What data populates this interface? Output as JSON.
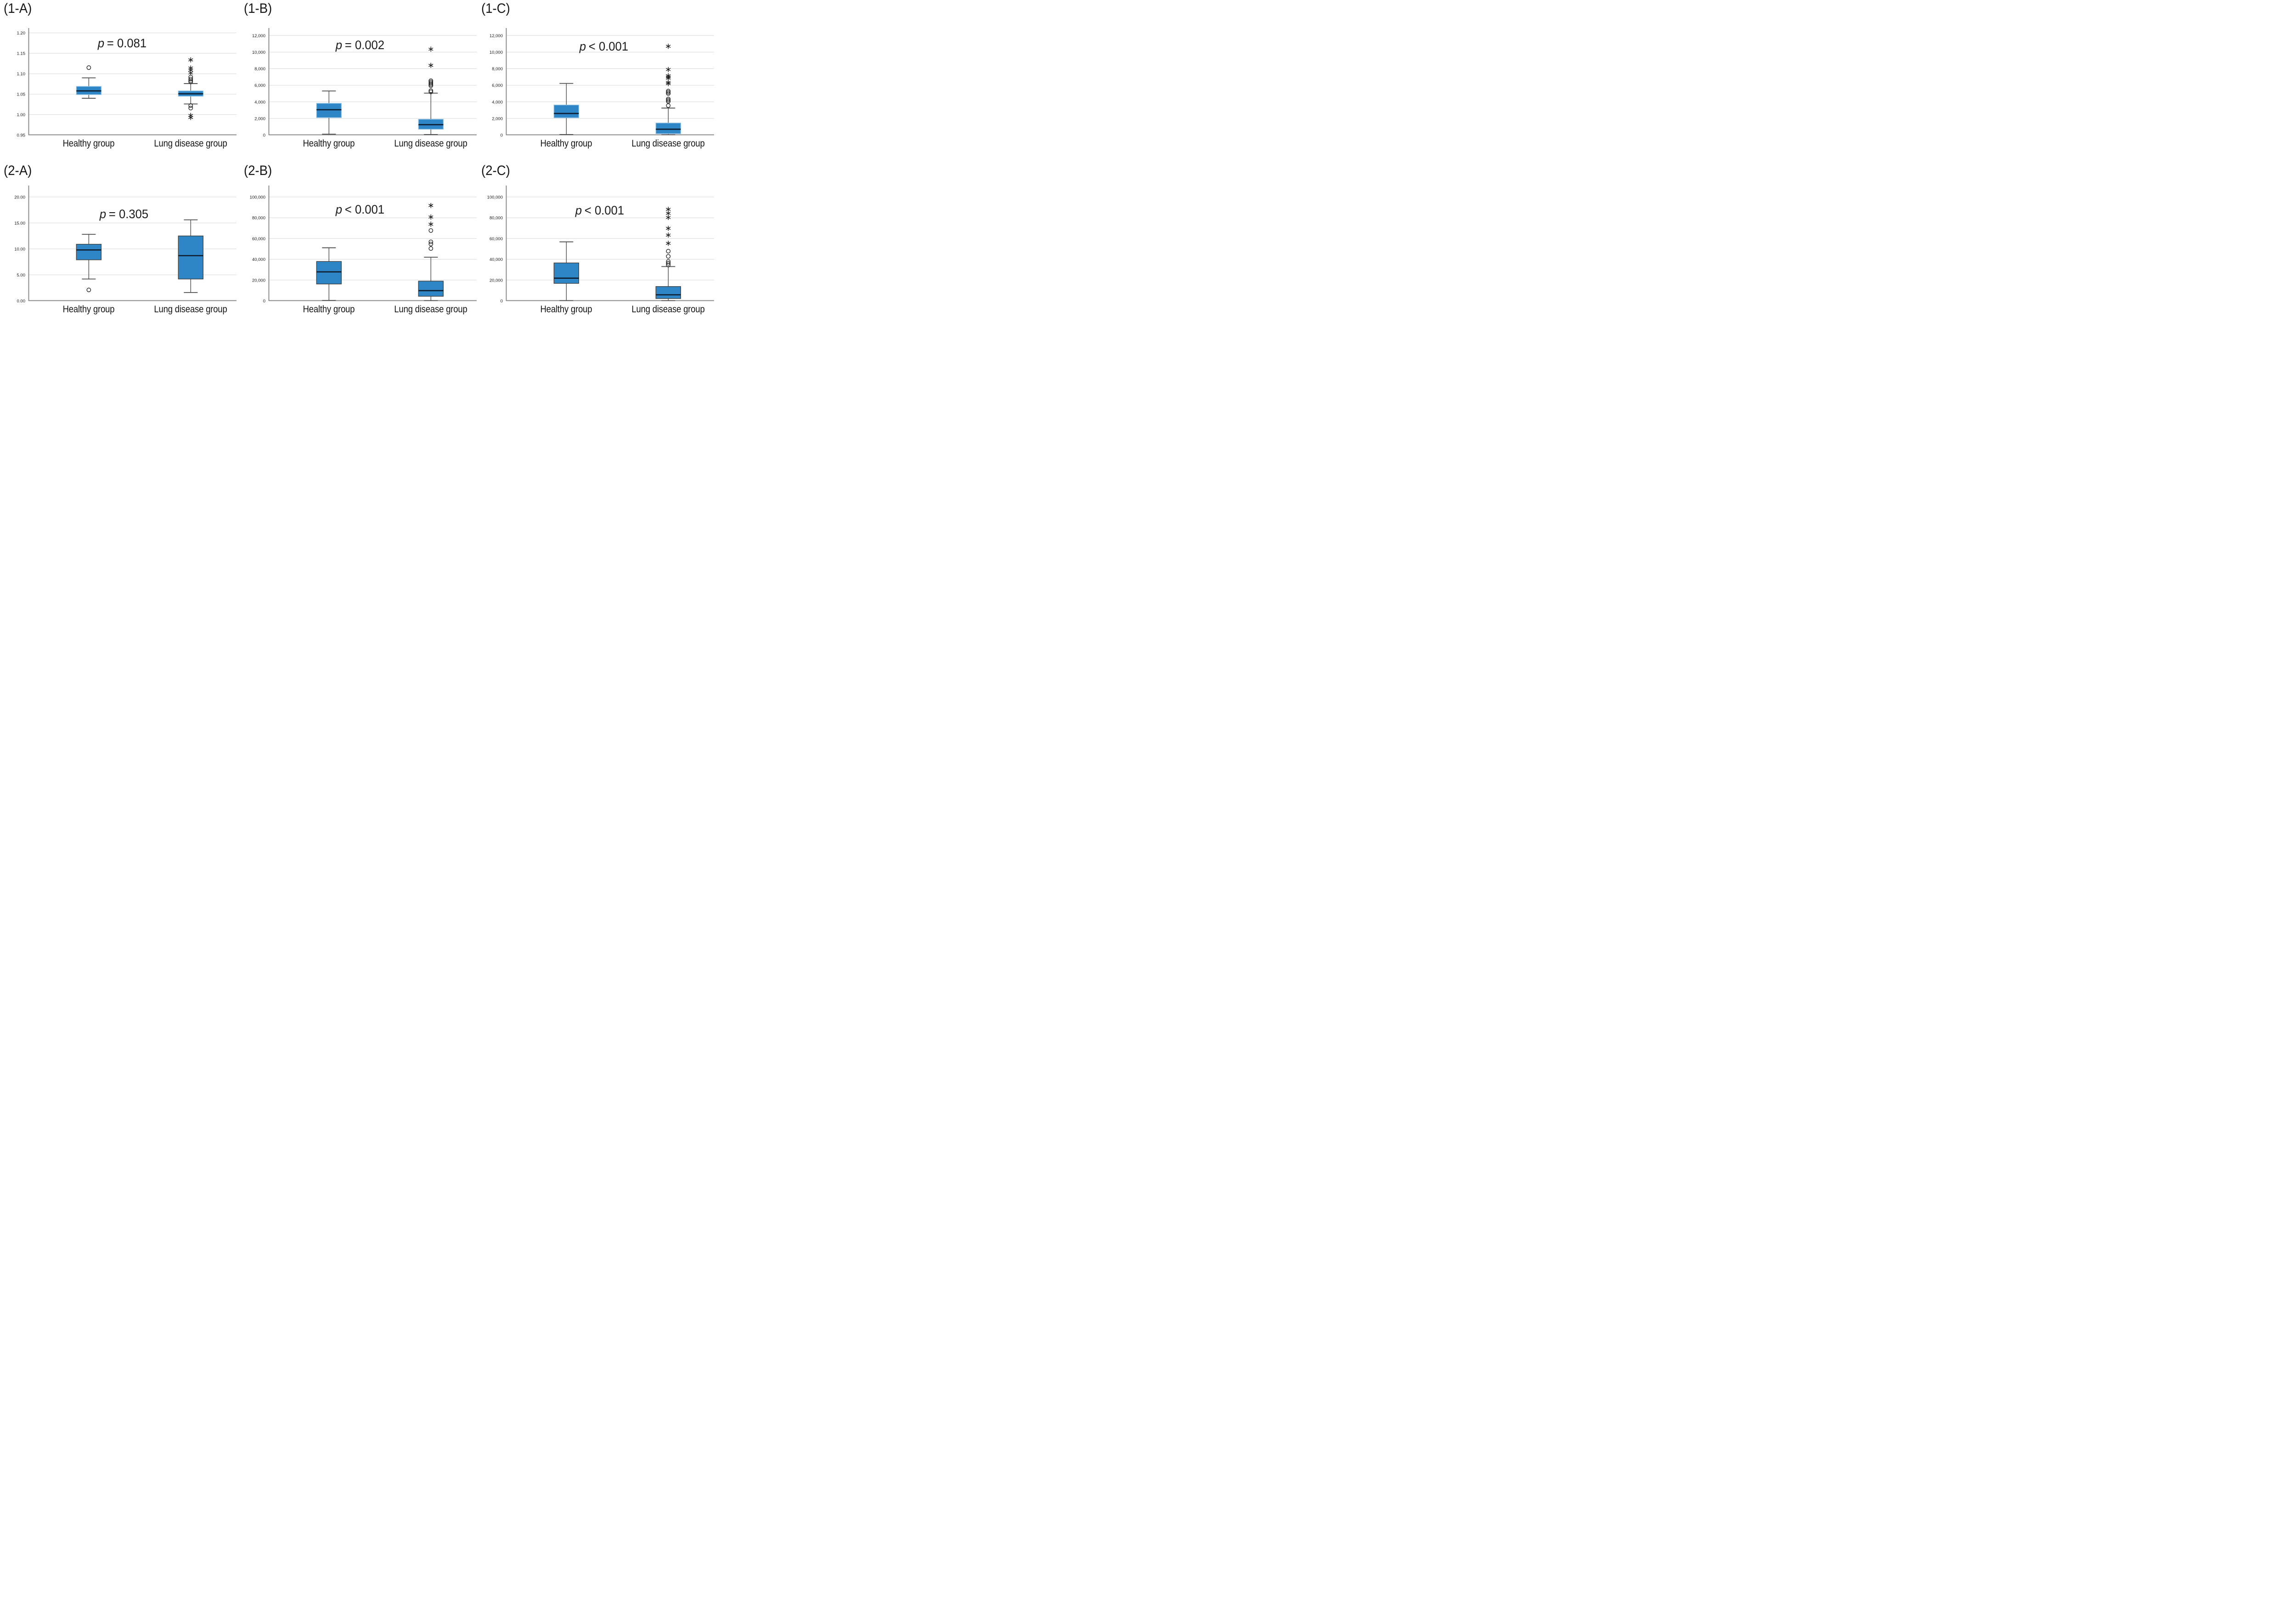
{
  "style": {
    "box_fill": "#2E86C6",
    "box_border_row1": "#8FC0E4",
    "box_border_row2": "#404040",
    "median_color": "#0D1B2A",
    "whisker_color": "#4D4D4D",
    "grid_color": "#D9D9D9",
    "axis_color": "#8C8C8C",
    "outlier_color": "#1A1A1A",
    "text_color": "#111111"
  },
  "chart_data": [
    {
      "type": "boxplot",
      "panel_label": "(1-A)",
      "p_symbol": "p",
      "p_rest": "= 0.081",
      "ylim": [
        0.95,
        1.212
      ],
      "grid": true,
      "legend": "none",
      "yticks": [
        {
          "v": 0.95,
          "label": "0.95"
        },
        {
          "v": 1.0,
          "label": "1.00"
        },
        {
          "v": 1.05,
          "label": "1.05"
        },
        {
          "v": 1.1,
          "label": "1.10"
        },
        {
          "v": 1.15,
          "label": "1.15"
        },
        {
          "v": 1.2,
          "label": "1.20"
        }
      ],
      "groups": [
        {
          "name": "Healthy group",
          "whisker_low": 1.04,
          "q1": 1.049,
          "median": 1.058,
          "q3": 1.069,
          "whisker_high": 1.09,
          "outliers_circle": [
            1.115
          ],
          "outliers_star": []
        },
        {
          "name": "Lung disease group",
          "whisker_low": 1.026,
          "q1": 1.045,
          "median": 1.051,
          "q3": 1.058,
          "whisker_high": 1.076,
          "outliers_circle": [
            1.092,
            1.087,
            1.083,
            1.08,
            1.022,
            1.016
          ],
          "outliers_star": [
            1.134,
            1.114,
            1.109,
            1.102,
            0.998,
            0.993
          ]
        }
      ]
    },
    {
      "type": "boxplot",
      "panel_label": "(1-B)",
      "p_symbol": "p",
      "p_rest": "= 0.002",
      "ylim": [
        0,
        12900
      ],
      "grid": true,
      "legend": "none",
      "yticks": [
        {
          "v": 0,
          "label": "0"
        },
        {
          "v": 2000,
          "label": "2,000"
        },
        {
          "v": 4000,
          "label": "4,000"
        },
        {
          "v": 6000,
          "label": "6,000"
        },
        {
          "v": 8000,
          "label": "8,000"
        },
        {
          "v": 10000,
          "label": "10,000"
        },
        {
          "v": 12000,
          "label": "12,000"
        }
      ],
      "groups": [
        {
          "name": "Healthy group",
          "whisker_low": 100,
          "q1": 2100,
          "median": 3050,
          "q3": 3820,
          "whisker_high": 5310,
          "outliers_circle": [],
          "outliers_star": []
        },
        {
          "name": "Lung disease group",
          "whisker_low": 60,
          "q1": 700,
          "median": 1250,
          "q3": 1900,
          "whisker_high": 5050,
          "outliers_circle": [
            5200,
            5350,
            5950,
            6100,
            6250,
            6400,
            6550
          ],
          "outliers_star": [
            8400,
            10350
          ]
        }
      ]
    },
    {
      "type": "boxplot",
      "panel_label": "(1-C)",
      "p_symbol": "p",
      "p_rest": "< 0.001",
      "ylim": [
        0,
        12900
      ],
      "grid": true,
      "legend": "none",
      "yticks": [
        {
          "v": 0,
          "label": "0"
        },
        {
          "v": 2000,
          "label": "2,000"
        },
        {
          "v": 4000,
          "label": "4,000"
        },
        {
          "v": 6000,
          "label": "6,000"
        },
        {
          "v": 8000,
          "label": "8,000"
        },
        {
          "v": 10000,
          "label": "10,000"
        },
        {
          "v": 12000,
          "label": "12,000"
        }
      ],
      "groups": [
        {
          "name": "Healthy group",
          "whisker_low": 60,
          "q1": 2080,
          "median": 2600,
          "q3": 3620,
          "whisker_high": 6220,
          "outliers_circle": [],
          "outliers_star": []
        },
        {
          "name": "Lung disease group",
          "whisker_low": 40,
          "q1": 160,
          "median": 700,
          "q3": 1450,
          "whisker_high": 3250,
          "outliers_circle": [
            3550,
            4050,
            4200,
            4350,
            5000,
            5150,
            5300
          ],
          "outliers_star": [
            6200,
            6350,
            6850,
            7000,
            7150,
            7900,
            10700
          ]
        }
      ]
    },
    {
      "type": "boxplot",
      "panel_label": "(2-A)",
      "p_symbol": "p",
      "p_rest": "= 0.305",
      "ylim": [
        0,
        22.2
      ],
      "grid": true,
      "legend": "none",
      "yticks": [
        {
          "v": 0,
          "label": "0.00"
        },
        {
          "v": 5,
          "label": "5.00"
        },
        {
          "v": 10,
          "label": "10.00"
        },
        {
          "v": 15,
          "label": "15.00"
        },
        {
          "v": 20,
          "label": "20.00"
        }
      ],
      "groups": [
        {
          "name": "Healthy group",
          "whisker_low": 4.2,
          "q1": 7.9,
          "median": 9.8,
          "q3": 10.9,
          "whisker_high": 12.8,
          "outliers_circle": [
            2.1
          ],
          "outliers_star": []
        },
        {
          "name": "Lung disease group",
          "whisker_low": 1.6,
          "q1": 4.2,
          "median": 8.7,
          "q3": 12.5,
          "whisker_high": 15.6,
          "outliers_circle": [],
          "outliers_star": []
        }
      ]
    },
    {
      "type": "boxplot",
      "panel_label": "(2-B)",
      "p_symbol": "p",
      "p_rest": "< 0.001",
      "ylim": [
        0,
        111000
      ],
      "grid": true,
      "legend": "none",
      "yticks": [
        {
          "v": 0,
          "label": "0"
        },
        {
          "v": 20000,
          "label": "20,000"
        },
        {
          "v": 40000,
          "label": "40,000"
        },
        {
          "v": 60000,
          "label": "60,000"
        },
        {
          "v": 80000,
          "label": "80,000"
        },
        {
          "v": 100000,
          "label": "100,000"
        }
      ],
      "groups": [
        {
          "name": "Healthy group",
          "whisker_low": 400,
          "q1": 16200,
          "median": 27900,
          "q3": 37900,
          "whisker_high": 51100,
          "outliers_circle": [],
          "outliers_star": []
        },
        {
          "name": "Lung disease group",
          "whisker_low": 250,
          "q1": 4400,
          "median": 9800,
          "q3": 19000,
          "whisker_high": 42000,
          "outliers_circle": [
            50400,
            54700,
            56800,
            67700
          ],
          "outliers_star": [
            73800,
            80700,
            91800
          ]
        }
      ]
    },
    {
      "type": "boxplot",
      "panel_label": "(2-C)",
      "p_symbol": "p",
      "p_rest": "< 0.001",
      "ylim": [
        0,
        111000
      ],
      "grid": true,
      "legend": "none",
      "yticks": [
        {
          "v": 0,
          "label": "0"
        },
        {
          "v": 20000,
          "label": "20,000"
        },
        {
          "v": 40000,
          "label": "40,000"
        },
        {
          "v": 60000,
          "label": "60,000"
        },
        {
          "v": 80000,
          "label": "80,000"
        },
        {
          "v": 100000,
          "label": "100,000"
        }
      ],
      "groups": [
        {
          "name": "Healthy group",
          "whisker_low": 250,
          "q1": 16800,
          "median": 21800,
          "q3": 36500,
          "whisker_high": 56800,
          "outliers_circle": [],
          "outliers_star": []
        },
        {
          "name": "Lung disease group",
          "whisker_low": 150,
          "q1": 2200,
          "median": 5800,
          "q3": 13800,
          "whisker_high": 33000,
          "outliers_circle": [
            34500,
            36200,
            37900,
            42800,
            47800
          ],
          "outliers_star": [
            55400,
            63300,
            69800,
            80300,
            84300,
            88100
          ]
        }
      ]
    }
  ]
}
